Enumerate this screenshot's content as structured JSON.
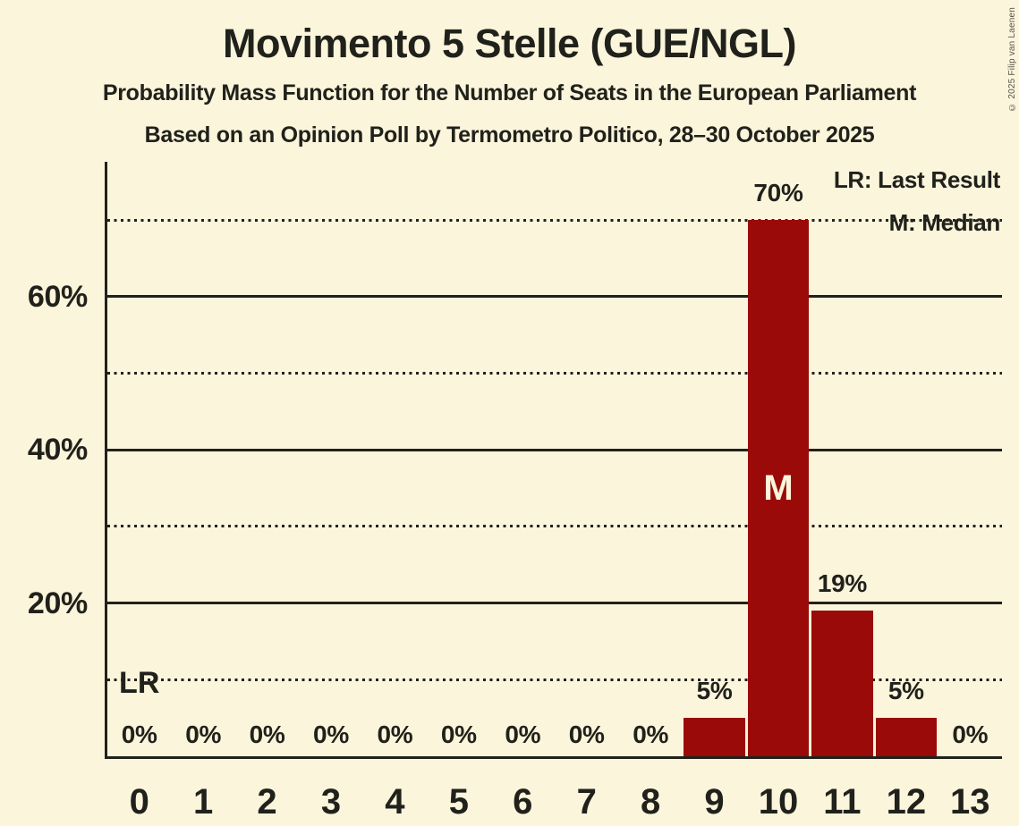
{
  "header": {
    "title": "Movimento 5 Stelle (GUE/NGL)",
    "subtitle1": "Probability Mass Function for the Number of Seats in the European Parliament",
    "subtitle2": "Based on an Opinion Poll by Termometro Politico, 28–30 October 2025"
  },
  "legend": {
    "last_result": "LR: Last Result",
    "median": "M: Median"
  },
  "copyright": "© 2025 Filip van Laenen",
  "chart_data": {
    "type": "bar",
    "title": "Movimento 5 Stelle (GUE/NGL)",
    "xlabel": "",
    "ylabel": "",
    "categories": [
      0,
      1,
      2,
      3,
      4,
      5,
      6,
      7,
      8,
      9,
      10,
      11,
      12,
      13
    ],
    "x_tick_labels": [
      "0",
      "1",
      "2",
      "3",
      "4",
      "5",
      "6",
      "7",
      "8",
      "9",
      "10",
      "11",
      "12",
      "13"
    ],
    "values": [
      0,
      0,
      0,
      0,
      0,
      0,
      0,
      0,
      0,
      5,
      70,
      19,
      5,
      0
    ],
    "value_labels": [
      "0%",
      "0%",
      "0%",
      "0%",
      "0%",
      "0%",
      "0%",
      "0%",
      "0%",
      "5%",
      "70%",
      "19%",
      "5%",
      "0%"
    ],
    "ylim": [
      0,
      77.6
    ],
    "y_ticks": [
      {
        "pct": 20,
        "label": "20%"
      },
      {
        "pct": 40,
        "label": "40%"
      },
      {
        "pct": 60,
        "label": "60%"
      }
    ],
    "gridlines": {
      "solid_pct": [
        20,
        40,
        60
      ],
      "dotted_pct": [
        10,
        30,
        50,
        70
      ]
    },
    "legend_position": "top-right",
    "annotations": {
      "median": {
        "seat": 10,
        "label": "M"
      },
      "last_result": {
        "seat": 0,
        "label": "LR",
        "line_pct": 10
      }
    },
    "colors": {
      "background": "#fbf5db",
      "bar": "#9a0a08",
      "text": "#21211c",
      "median_text": "#fbf5db",
      "copyright_text": "#57534b"
    }
  }
}
